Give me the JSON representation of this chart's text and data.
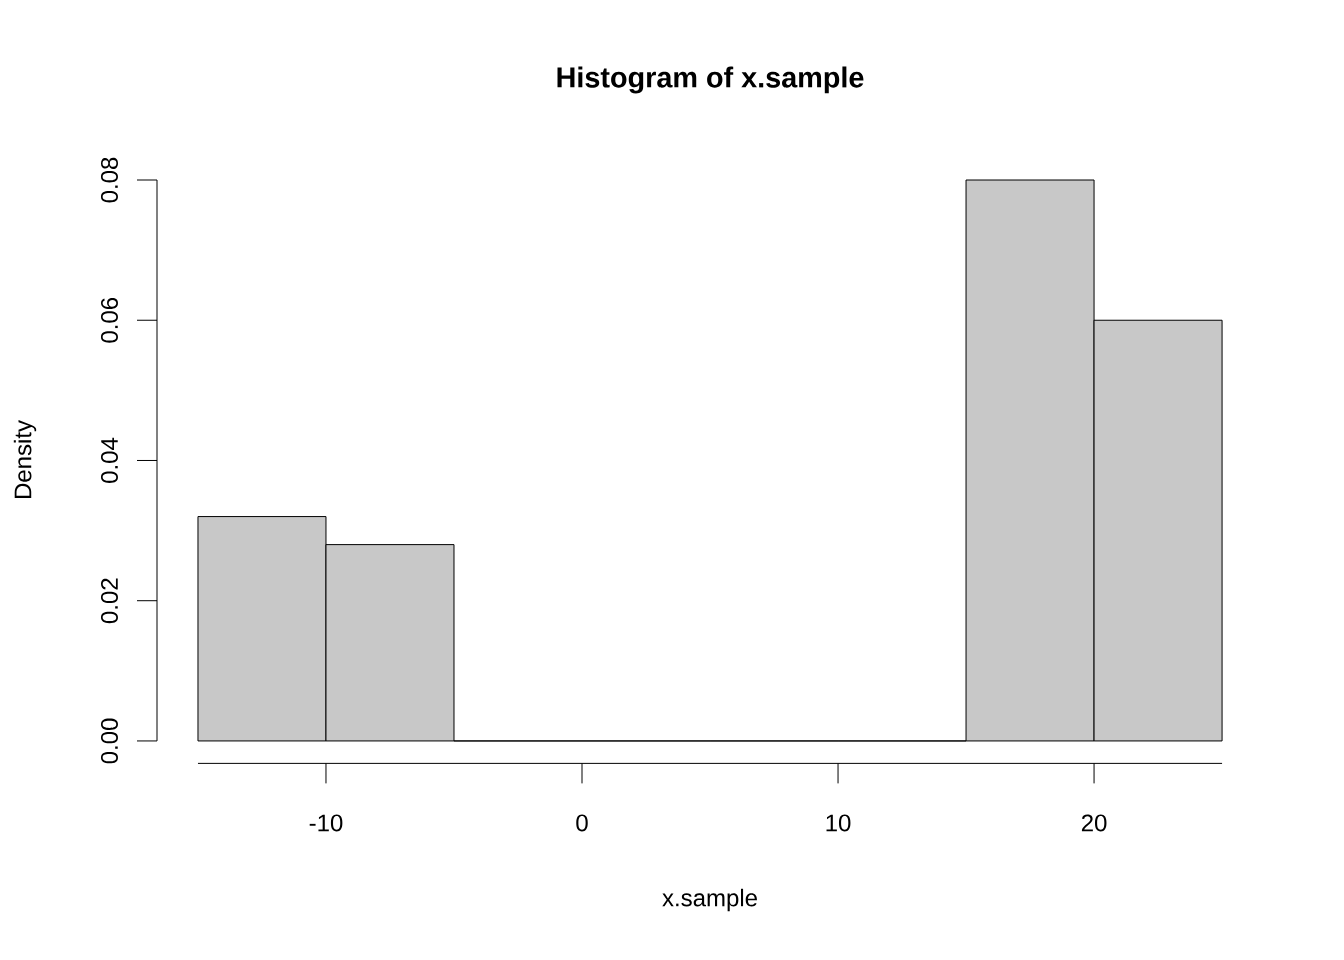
{
  "chart_data": {
    "type": "histogram",
    "title": "Histogram of x.sample",
    "xlabel": "x.sample",
    "ylabel": "Density",
    "bins": [
      -15,
      -10,
      -5,
      0,
      5,
      10,
      15,
      20,
      25
    ],
    "values": [
      0.032,
      0.028,
      0,
      0,
      0,
      0,
      0.08,
      0.06
    ],
    "color": "#c8c8c8",
    "xlim": [
      -15,
      25
    ],
    "ylim": [
      0,
      0.08
    ],
    "xticks": [
      -10,
      0,
      10,
      20
    ],
    "yticks": [
      {
        "value": 0,
        "label": "0.00"
      },
      0.02,
      0.04,
      0.06,
      0.08
    ]
  }
}
